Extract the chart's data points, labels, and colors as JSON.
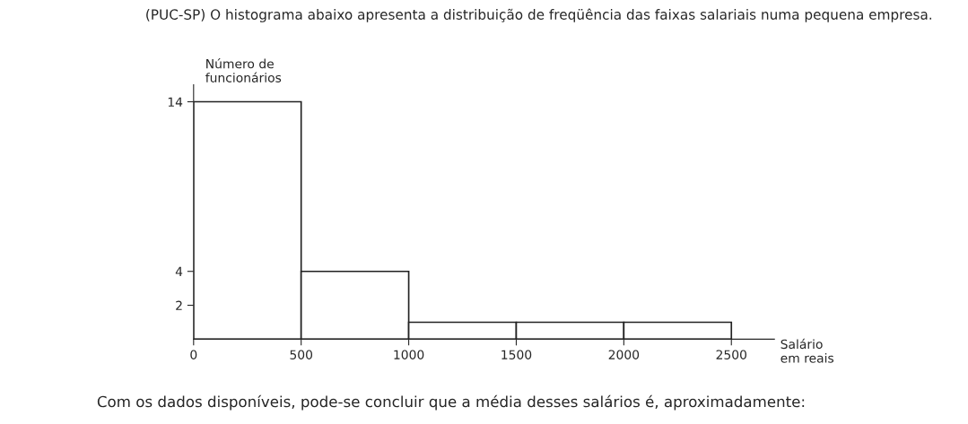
{
  "chart_data": {
    "type": "histogram",
    "title": "(PUC-SP) O histograma abaixo apresenta a distribuição de freqüência das faixas salariais numa pequena empresa.",
    "xlabel": "Salário\nem reais",
    "ylabel": "Número de\nfuncionários",
    "bins": [
      0,
      500,
      1000,
      1500,
      2000,
      2500
    ],
    "values": [
      14,
      4,
      1,
      1,
      1
    ],
    "color": "#ffffff",
    "xlim": [
      0,
      2700
    ],
    "ylim": [
      0,
      15
    ],
    "xticks": [
      0,
      500,
      1000,
      1500,
      2000,
      2500
    ],
    "yticks": [
      2,
      4,
      14
    ],
    "grid": false,
    "legend": false,
    "annotations": [
      "Com os dados disponíveis, pode-se concluir que a média desses salários é, aproximadamente:"
    ]
  }
}
